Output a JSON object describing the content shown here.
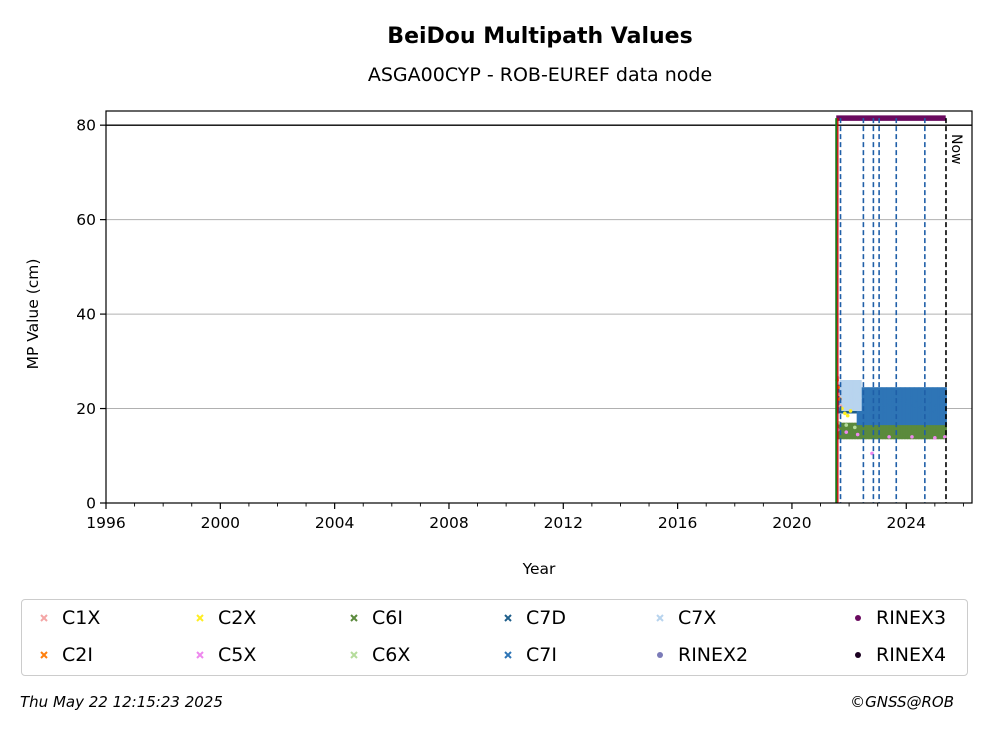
{
  "chart_data": {
    "type": "scatter",
    "title": "BeiDou Multipath Values",
    "subtitle": "ASGA00CYP - ROB-EUREF data node",
    "xlabel": "Year",
    "ylabel": "MP Value (cm)",
    "xlim": [
      1996.0,
      2026.3
    ],
    "ylim": [
      0,
      83
    ],
    "x_ticks": [
      1996,
      2000,
      2004,
      2008,
      2012,
      2016,
      2020,
      2024
    ],
    "y_ticks": [
      0,
      20,
      40,
      60,
      80
    ],
    "grid": "horizontal",
    "hline": 80,
    "now_label": "Now",
    "now_year": 2025.39,
    "start_line_year": 2021.55,
    "event_lines": [
      2021.7,
      2022.5,
      2022.85,
      2023.05,
      2023.65,
      2024.65
    ],
    "series": [
      {
        "name": "C1X",
        "color": "#f4a6a6",
        "marker": "x",
        "points": [
          [
            2021.6,
            26.5
          ],
          [
            2021.65,
            23.0
          ],
          [
            2021.7,
            20.5
          ]
        ]
      },
      {
        "name": "C2I",
        "color": "#ff7f0e",
        "marker": "x",
        "points": [
          [
            2021.58,
            26.0
          ],
          [
            2021.62,
            24.5
          ],
          [
            2021.68,
            22.0
          ]
        ]
      },
      {
        "name": "C2X",
        "color": "#ffee22",
        "marker": "x",
        "points": [
          [
            2021.75,
            20.0
          ],
          [
            2021.85,
            19.0
          ],
          [
            2021.95,
            18.5
          ],
          [
            2022.05,
            19.5
          ]
        ]
      },
      {
        "name": "C5X",
        "color": "#ee88ee",
        "marker": "x",
        "points": [
          [
            2021.6,
            15.5
          ],
          [
            2021.9,
            15.0
          ],
          [
            2022.3,
            14.5
          ],
          [
            2022.8,
            10.5
          ],
          [
            2023.4,
            14.0
          ],
          [
            2024.2,
            14.0
          ],
          [
            2025.0,
            13.8
          ],
          [
            2025.35,
            14.0
          ]
        ]
      },
      {
        "name": "C6I",
        "color": "#5b8a3c",
        "marker": "x",
        "band": [
          2021.6,
          2025.38,
          13.5,
          17.0
        ]
      },
      {
        "name": "C6X",
        "color": "#b5dc9c",
        "marker": "x",
        "points": [
          [
            2021.65,
            17.0
          ],
          [
            2021.9,
            16.5
          ],
          [
            2022.2,
            16.0
          ]
        ]
      },
      {
        "name": "C7D",
        "color": "#1f5f8b",
        "marker": "x",
        "band": [
          2021.6,
          2022.3,
          19.0,
          25.0
        ]
      },
      {
        "name": "C7I",
        "color": "#2e75b6",
        "marker": "x",
        "band": [
          2022.3,
          2025.38,
          16.5,
          24.5
        ]
      },
      {
        "name": "C7X",
        "color": "#b8d4ee",
        "marker": "x",
        "band": [
          2021.7,
          2022.4,
          19.5,
          26.0
        ]
      },
      {
        "name": "RINEX2",
        "color": "#7b7bb8",
        "marker": "o",
        "points": []
      },
      {
        "name": "RINEX3",
        "color": "#6a0a5f",
        "marker": "o",
        "range": [
          2021.55,
          2025.38,
          81.5
        ]
      },
      {
        "name": "RINEX4",
        "color": "#1a0020",
        "marker": "o",
        "points": []
      }
    ]
  },
  "footer": {
    "timestamp": "Thu May 22 12:15:23 2025",
    "credit": "©GNSS@ROB"
  }
}
